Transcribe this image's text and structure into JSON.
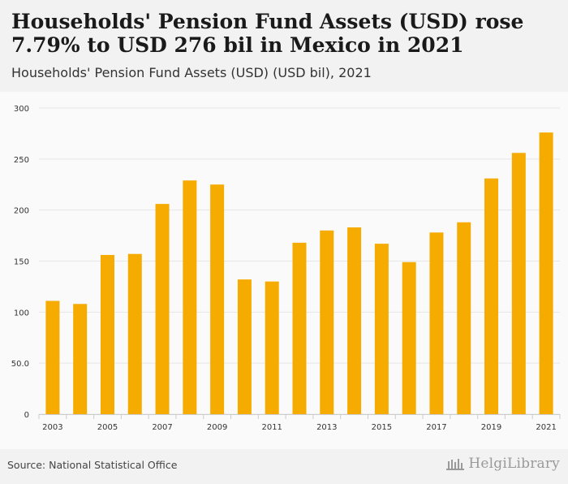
{
  "header": {
    "title": "Households' Pension Fund Assets (USD) rose 7.79% to USD 276 bil in Mexico in 2021",
    "subtitle": "Households' Pension Fund Assets (USD) (USD bil), 2021"
  },
  "footer": {
    "source": "Source: National Statistical Office",
    "brand": "HelgiLibrary"
  },
  "colors": {
    "bar": "#f5ab00",
    "grid": "#e6e6e6",
    "tick": "#333333"
  },
  "chart_data": {
    "type": "bar",
    "title": "Households' Pension Fund Assets (USD) (USD bil), 2021",
    "xlabel": "",
    "ylabel": "",
    "ylim": [
      0,
      300
    ],
    "yticks": [
      0,
      50,
      100,
      150,
      200,
      250,
      300
    ],
    "ytick_labels": [
      "0",
      "50.0",
      "100",
      "150",
      "200",
      "250",
      "300"
    ],
    "categories": [
      "2003",
      "2004",
      "2005",
      "2006",
      "2007",
      "2008",
      "2009",
      "2010",
      "2011",
      "2012",
      "2013",
      "2014",
      "2015",
      "2016",
      "2017",
      "2018",
      "2019",
      "2020",
      "2021"
    ],
    "xtick_labels": [
      "2003",
      "",
      "2005",
      "",
      "2007",
      "",
      "2009",
      "",
      "2011",
      "",
      "2013",
      "",
      "2015",
      "",
      "2017",
      "",
      "2019",
      "",
      "2021"
    ],
    "values": [
      111,
      108,
      156,
      157,
      206,
      229,
      225,
      132,
      130,
      168,
      180,
      183,
      167,
      149,
      178,
      188,
      231,
      256,
      276
    ],
    "grid": true,
    "legend": "none"
  }
}
